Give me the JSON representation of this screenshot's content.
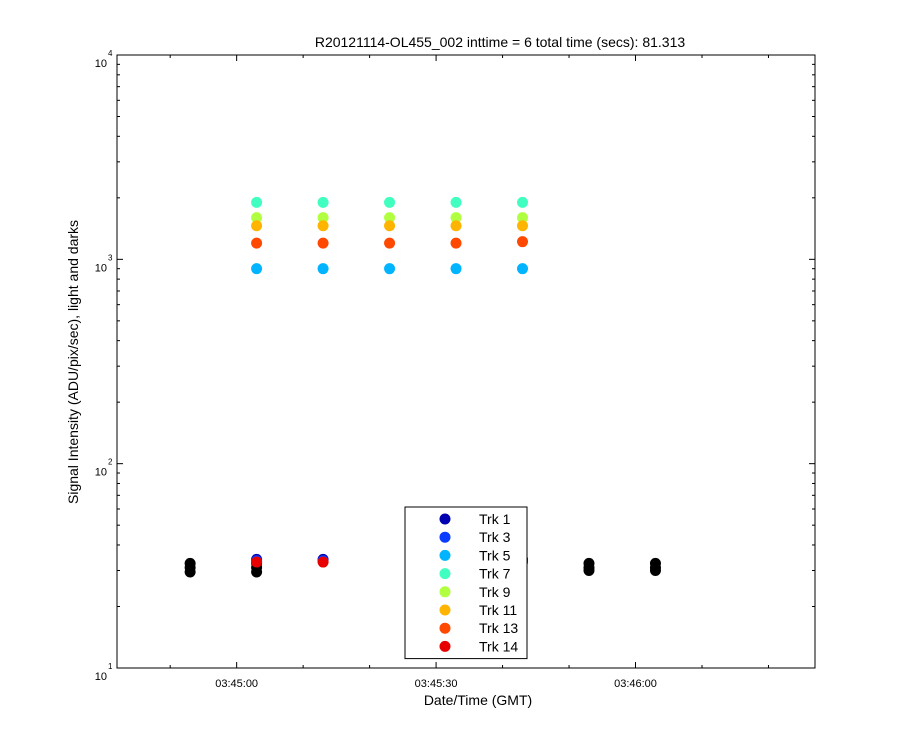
{
  "chart_data": {
    "type": "scatter",
    "title": "R20121114-OL455_002 inttime = 6 total time (secs): 81.313",
    "xlabel": "Date/Time (GMT)",
    "ylabel": "Signal Intensity (ADU/pix/sec), light and darks",
    "y_scale": "log",
    "ylim": [
      10,
      10000
    ],
    "xlim": [
      "03:44:42",
      "03:46:27"
    ],
    "x_ticks": [
      "03:45:00",
      "03:45:30",
      "03:46:00"
    ],
    "y_ticks": [
      {
        "base": "10",
        "exp": "1",
        "value": 10
      },
      {
        "base": "10",
        "exp": "2",
        "value": 100
      },
      {
        "base": "10",
        "exp": "3",
        "value": 1000
      },
      {
        "base": "10",
        "exp": "4",
        "value": 10000
      }
    ],
    "grid": false,
    "legend_position": "bottom-center",
    "series": [
      {
        "name": "Trk 1",
        "color": "#0000b0",
        "points": [
          [
            "03:45:03",
            34
          ],
          [
            "03:45:13",
            34
          ],
          [
            "03:45:43",
            34
          ]
        ]
      },
      {
        "name": "Trk 3",
        "color": "#0a3cff",
        "points": [
          [
            "03:45:03",
            33.5
          ],
          [
            "03:45:13",
            33.5
          ],
          [
            "03:45:43",
            33.5
          ]
        ]
      },
      {
        "name": "Trk 5",
        "color": "#00b4ff",
        "points": [
          [
            "03:45:03",
            900
          ],
          [
            "03:45:13",
            900
          ],
          [
            "03:45:23",
            900
          ],
          [
            "03:45:33",
            900
          ],
          [
            "03:45:43",
            900
          ]
        ]
      },
      {
        "name": "Trk 7",
        "color": "#40ffc0",
        "points": [
          [
            "03:45:03",
            1900
          ],
          [
            "03:45:13",
            1900
          ],
          [
            "03:45:23",
            1900
          ],
          [
            "03:45:33",
            1900
          ],
          [
            "03:45:43",
            1900
          ]
        ]
      },
      {
        "name": "Trk 9",
        "color": "#b0ff40",
        "points": [
          [
            "03:45:03",
            1600
          ],
          [
            "03:45:13",
            1600
          ],
          [
            "03:45:23",
            1600
          ],
          [
            "03:45:33",
            1600
          ],
          [
            "03:45:43",
            1600
          ]
        ]
      },
      {
        "name": "Trk 11",
        "color": "#ffb400",
        "points": [
          [
            "03:45:03",
            1460
          ],
          [
            "03:45:13",
            1460
          ],
          [
            "03:45:23",
            1460
          ],
          [
            "03:45:33",
            1460
          ],
          [
            "03:45:43",
            1460
          ]
        ]
      },
      {
        "name": "Trk 13",
        "color": "#ff4800",
        "points": [
          [
            "03:45:03",
            1200
          ],
          [
            "03:45:13",
            1200
          ],
          [
            "03:45:23",
            1200
          ],
          [
            "03:45:33",
            1200
          ],
          [
            "03:45:43",
            1220
          ]
        ]
      },
      {
        "name": "Trk 14",
        "color": "#e80000",
        "points": [
          [
            "03:45:03",
            33
          ],
          [
            "03:45:13",
            33
          ],
          [
            "03:45:43",
            33
          ]
        ]
      }
    ],
    "darks": {
      "color": "#000000",
      "points": [
        [
          "03:44:53",
          32.5
        ],
        [
          "03:44:53",
          31
        ],
        [
          "03:44:53",
          29.5
        ],
        [
          "03:45:03",
          32.5
        ],
        [
          "03:45:03",
          31
        ],
        [
          "03:45:03",
          29.5
        ],
        [
          "03:45:53",
          32.5
        ],
        [
          "03:45:53",
          31
        ],
        [
          "03:45:53",
          30
        ],
        [
          "03:46:03",
          32.5
        ],
        [
          "03:46:03",
          31
        ],
        [
          "03:46:03",
          30
        ]
      ]
    }
  }
}
